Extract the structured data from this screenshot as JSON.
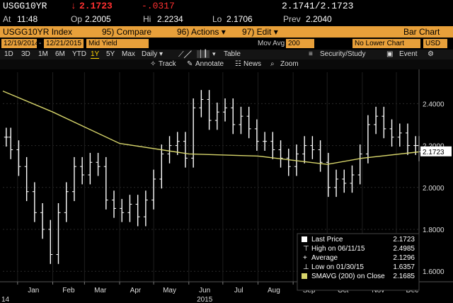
{
  "quote": {
    "ticker": "USGG10YR",
    "arrow": "↓",
    "last": "2.1723",
    "change": "-.0317",
    "bidask": "2.1741/2.1723",
    "time_label": "At",
    "time": "11:48",
    "open_label": "Op",
    "open": "2.2005",
    "high_label": "Hi",
    "high": "2.2234",
    "low_label": "Lo",
    "low": "2.1706",
    "prev_label": "Prev",
    "prev": "2.2040"
  },
  "command": {
    "security": "USGG10YR Index",
    "compare": "95) Compare",
    "actions": "96) Actions ▾",
    "edit": "97) Edit ▾",
    "view": "Bar Chart"
  },
  "fields": {
    "start_date": "12/19/2014",
    "end_date": "12/21/2015",
    "yield_type": "Mid Yield",
    "mov_avg_label": "Mov Avg",
    "mov_avg_value": "200",
    "lower_chart": "No Lower Chart",
    "currency": "USD"
  },
  "periods": [
    "1D",
    "3D",
    "1M",
    "6M",
    "YTD",
    "1Y",
    "5Y",
    "Max"
  ],
  "selected_period": "1Y",
  "toolbar": {
    "frequency": "Daily ▾",
    "table": "Table",
    "security_study": "Security/Study",
    "event": "Event"
  },
  "chart_tools": {
    "track": "Track",
    "annotate": "Annotate",
    "news": "News",
    "zoom": "Zoom"
  },
  "colors": {
    "orange": "#e8a03a",
    "price_bars": "#ffffff",
    "sma_line": "#d6d46a",
    "down": "#ff3030",
    "yellow": "#ffd400"
  },
  "legend": {
    "last_price_label": "Last Price",
    "last_price_value": "2.1723",
    "high_label": "High on 06/11/15",
    "high_value": "2.4985",
    "average_label": "Average",
    "average_value": "2.1296",
    "low_label": "Low on 01/30/15",
    "low_value": "1.6357",
    "sma_label": "SMAVG (200) on Close",
    "sma_value": "2.1685"
  },
  "chart_data": {
    "type": "bar",
    "x_labels": [
      "Jan",
      "Feb",
      "Mar",
      "Apr",
      "May",
      "Jun",
      "Jul",
      "Aug",
      "Sep",
      "Oct",
      "Nov",
      "Dec"
    ],
    "year_label": "2015",
    "axis_start_label": "14",
    "y_ticks": [
      "2.4000",
      "2.2000",
      "2.0000",
      "1.8000",
      "1.6000"
    ],
    "ylim": [
      1.55,
      2.55
    ],
    "last_value_tag": "2.1723",
    "series": [
      {
        "name": "Last Price",
        "x": [
          "2014-12-22",
          "2014-12-26",
          "2015-01-02",
          "2015-01-09",
          "2015-01-16",
          "2015-01-23",
          "2015-01-30",
          "2015-02-06",
          "2015-02-13",
          "2015-02-20",
          "2015-02-27",
          "2015-03-06",
          "2015-03-13",
          "2015-03-20",
          "2015-03-27",
          "2015-04-03",
          "2015-04-10",
          "2015-04-17",
          "2015-04-24",
          "2015-05-01",
          "2015-05-08",
          "2015-05-15",
          "2015-05-22",
          "2015-05-29",
          "2015-06-05",
          "2015-06-12",
          "2015-06-19",
          "2015-06-26",
          "2015-07-03",
          "2015-07-10",
          "2015-07-17",
          "2015-07-24",
          "2015-07-31",
          "2015-08-07",
          "2015-08-14",
          "2015-08-21",
          "2015-08-28",
          "2015-09-04",
          "2015-09-11",
          "2015-09-18",
          "2015-09-25",
          "2015-10-02",
          "2015-10-09",
          "2015-10-16",
          "2015-10-23",
          "2015-10-30",
          "2015-11-06",
          "2015-11-13",
          "2015-11-20",
          "2015-11-27",
          "2015-12-04",
          "2015-12-11",
          "2015-12-18",
          "2015-12-21"
        ],
        "values": [
          2.24,
          2.18,
          2.1,
          1.98,
          1.88,
          1.8,
          1.68,
          1.88,
          1.98,
          2.1,
          2.06,
          2.12,
          2.1,
          1.94,
          1.9,
          1.88,
          1.92,
          1.86,
          1.94,
          2.04,
          2.16,
          2.2,
          2.22,
          2.14,
          2.38,
          2.42,
          2.32,
          2.36,
          2.38,
          2.3,
          2.34,
          2.28,
          2.22,
          2.22,
          2.18,
          2.14,
          2.1,
          2.16,
          2.2,
          2.18,
          2.12,
          2.0,
          2.04,
          2.02,
          2.06,
          2.16,
          2.3,
          2.34,
          2.28,
          2.24,
          2.26,
          2.2,
          2.2,
          2.17
        ]
      },
      {
        "name": "SMAVG (200) on Close",
        "x": [
          "2014-12-19",
          "2015-02-01",
          "2015-04-01",
          "2015-06-01",
          "2015-08-01",
          "2015-10-01",
          "2015-11-01",
          "2015-12-21"
        ],
        "values": [
          2.46,
          2.36,
          2.21,
          2.16,
          2.15,
          2.11,
          2.14,
          2.17
        ]
      }
    ]
  }
}
